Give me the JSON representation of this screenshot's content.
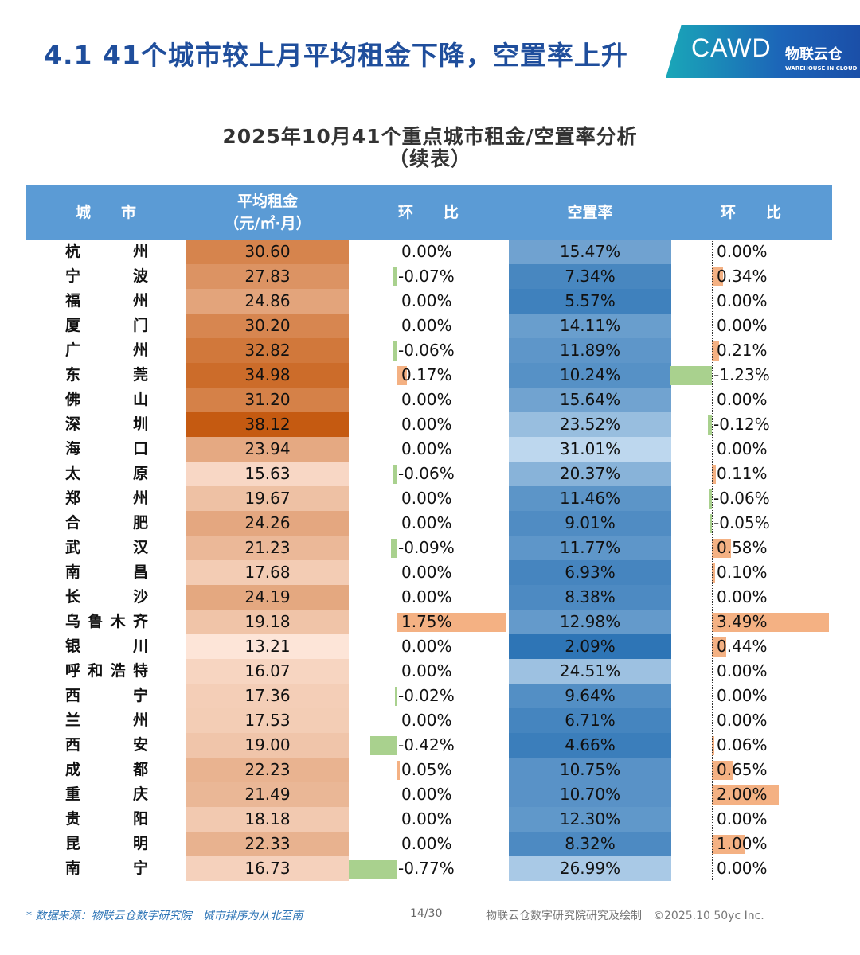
{
  "header": {
    "title": "4.1 41个城市较上月平均租金下降，空置率上升",
    "logo_cawd": "CAWD",
    "logo_wic": "物联云仓",
    "logo_wic_en": "WAREHOUSE IN CLOUD"
  },
  "subtitle": {
    "line1": "2025年10月41个重点城市租金/空置率分析",
    "line2": "（续表）"
  },
  "colors": {
    "header_bg": "#5b9bd5",
    "title": "#1f4e9c",
    "rent_high": "#c55a11",
    "rent_low": "#fde5d8",
    "vac_low": "#2e75b6",
    "vac_high": "#bdd7ee",
    "pos_bar": "#f4b183",
    "neg_bar": "#a9d18e"
  },
  "chart_data": {
    "type": "table",
    "columns": [
      "城　　市",
      "平均租金\n（元/㎡·月）",
      "环　　比",
      "空置率",
      "环　　比"
    ],
    "rows": [
      [
        "杭　州",
        "30.60",
        "0.00%",
        "15.47%",
        "0.00%"
      ],
      [
        "宁　波",
        "27.83",
        "-0.07%",
        "7.34%",
        "0.34%"
      ],
      [
        "福　州",
        "24.86",
        "0.00%",
        "5.57%",
        "0.00%"
      ],
      [
        "厦　门",
        "30.20",
        "0.00%",
        "14.11%",
        "0.00%"
      ],
      [
        "广　州",
        "32.82",
        "-0.06%",
        "11.89%",
        "0.21%"
      ],
      [
        "东　莞",
        "34.98",
        "0.17%",
        "10.24%",
        "-1.23%"
      ],
      [
        "佛　山",
        "31.20",
        "0.00%",
        "15.64%",
        "0.00%"
      ],
      [
        "深　圳",
        "38.12",
        "0.00%",
        "23.52%",
        "-0.12%"
      ],
      [
        "海　口",
        "23.94",
        "0.00%",
        "31.01%",
        "0.00%"
      ],
      [
        "太　原",
        "15.63",
        "-0.06%",
        "20.37%",
        "0.11%"
      ],
      [
        "郑　州",
        "19.67",
        "0.00%",
        "11.46%",
        "-0.06%"
      ],
      [
        "合　肥",
        "24.26",
        "0.00%",
        "9.01%",
        "-0.05%"
      ],
      [
        "武　汉",
        "21.23",
        "-0.09%",
        "11.77%",
        "0.58%"
      ],
      [
        "南　昌",
        "17.68",
        "0.00%",
        "6.93%",
        "0.10%"
      ],
      [
        "长　沙",
        "24.19",
        "0.00%",
        "8.38%",
        "0.00%"
      ],
      [
        "乌鲁木齐",
        "19.18",
        "1.75%",
        "12.98%",
        "3.49%"
      ],
      [
        "银　川",
        "13.21",
        "0.00%",
        "2.09%",
        "0.44%"
      ],
      [
        "呼和浩特",
        "16.07",
        "0.00%",
        "24.51%",
        "0.00%"
      ],
      [
        "西　宁",
        "17.36",
        "-0.02%",
        "9.64%",
        "0.00%"
      ],
      [
        "兰　州",
        "17.53",
        "0.00%",
        "6.71%",
        "0.00%"
      ],
      [
        "西　安",
        "19.00",
        "-0.42%",
        "4.66%",
        "0.06%"
      ],
      [
        "成　都",
        "22.23",
        "0.05%",
        "10.75%",
        "0.65%"
      ],
      [
        "重　庆",
        "21.49",
        "0.00%",
        "10.70%",
        "2.00%"
      ],
      [
        "贵　阳",
        "18.18",
        "0.00%",
        "12.30%",
        "0.00%"
      ],
      [
        "昆　明",
        "22.33",
        "0.00%",
        "8.32%",
        "1.00%"
      ],
      [
        "南　宁",
        "16.73",
        "-0.77%",
        "26.99%",
        "0.00%"
      ]
    ]
  },
  "footer": {
    "source": "* 数据来源：物联云仓数字研究院　城市排序为从北至南",
    "page": "14/30",
    "credit": "物联云仓数字研究院研究及绘制　©2025.10 50yc Inc."
  }
}
